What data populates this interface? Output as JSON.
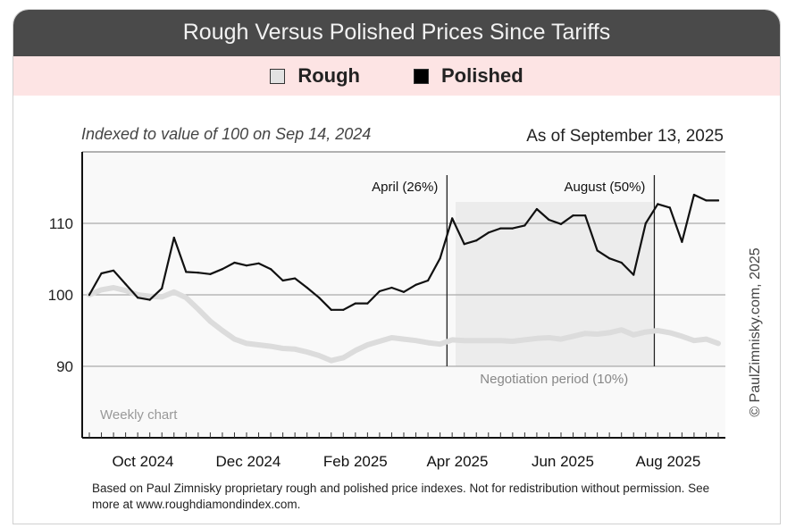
{
  "title": "Rough Versus Polished Prices Since Tariffs",
  "subtitle_left": "Indexed to value of 100 on Sep 14, 2024",
  "subtitle_right": "As of September 13, 2025",
  "watermark": "© PaulZimnisky.com, 2025",
  "footnote": "Based on Paul Zimnisky proprietary rough and polished price indexes. Not for redistribution without permission. See more at www.roughdiamondindex.com.",
  "chart_data": {
    "type": "line",
    "title": "Rough Versus Polished Prices Since Tariffs",
    "xlabel": "",
    "ylabel": "",
    "ylim": [
      80,
      120
    ],
    "yticks": [
      90,
      100,
      110
    ],
    "grid": "horizontal",
    "legend_placement": "top",
    "x_tick_labels": [
      "Oct 2024",
      "Dec 2024",
      "Feb 2025",
      "Apr 2025",
      "Jun 2025",
      "Aug 2025"
    ],
    "x_tick_months": [
      "2024-10",
      "2024-12",
      "2025-02",
      "2025-04",
      "2025-06",
      "2025-08"
    ],
    "x": [
      "2024-09-14",
      "2024-09-21",
      "2024-09-28",
      "2024-10-05",
      "2024-10-12",
      "2024-10-19",
      "2024-10-26",
      "2024-11-02",
      "2024-11-09",
      "2024-11-16",
      "2024-11-23",
      "2024-11-30",
      "2024-12-07",
      "2024-12-14",
      "2024-12-21",
      "2024-12-28",
      "2025-01-04",
      "2025-01-11",
      "2025-01-18",
      "2025-01-25",
      "2025-02-01",
      "2025-02-08",
      "2025-02-15",
      "2025-02-22",
      "2025-03-01",
      "2025-03-08",
      "2025-03-15",
      "2025-03-22",
      "2025-03-29",
      "2025-04-05",
      "2025-04-12",
      "2025-04-19",
      "2025-04-26",
      "2025-05-03",
      "2025-05-10",
      "2025-05-17",
      "2025-05-24",
      "2025-05-31",
      "2025-06-07",
      "2025-06-14",
      "2025-06-21",
      "2025-06-28",
      "2025-07-05",
      "2025-07-12",
      "2025-07-19",
      "2025-07-26",
      "2025-08-02",
      "2025-08-09",
      "2025-08-16",
      "2025-08-23",
      "2025-08-30",
      "2025-09-06",
      "2025-09-13"
    ],
    "series": [
      {
        "name": "Rough",
        "color": "#dcdcdc",
        "values": [
          100,
          100.7,
          101,
          100.6,
          100,
          99.8,
          99.7,
          100.4,
          99.6,
          98,
          96.3,
          95,
          93.8,
          93.2,
          93,
          92.8,
          92.5,
          92.4,
          92,
          91.5,
          90.8,
          91.2,
          92.2,
          93,
          93.5,
          94,
          93.8,
          93.6,
          93.3,
          93.1,
          93.7,
          93.6,
          93.6,
          93.6,
          93.6,
          93.5,
          93.7,
          93.9,
          94,
          93.8,
          94.2,
          94.6,
          94.5,
          94.7,
          95.1,
          94.4,
          94.8,
          95,
          94.7,
          94.2,
          93.6,
          93.8,
          93.2
        ]
      },
      {
        "name": "Polished",
        "color": "#111111",
        "values": [
          100,
          103,
          103.4,
          101.5,
          99.6,
          99.3,
          100.9,
          108,
          103.2,
          103.1,
          102.9,
          103.6,
          104.5,
          104.1,
          104.4,
          103.6,
          102,
          102.3,
          101,
          99.6,
          97.9,
          97.9,
          98.8,
          98.8,
          100.5,
          101,
          100.4,
          101.4,
          102,
          105.1,
          110.7,
          107.1,
          107.6,
          108.7,
          109.3,
          109.3,
          109.7,
          112,
          110.5,
          109.9,
          111.1,
          111.1,
          106.2,
          105.1,
          104.5,
          102.8,
          110,
          112.7,
          112.2,
          107.4,
          114,
          113.2,
          113.2
        ]
      }
    ],
    "annotations": [
      {
        "type": "vline",
        "date": "2025-04-09",
        "label": "April (26%)"
      },
      {
        "type": "vline",
        "date": "2025-08-07",
        "label": "August (50%)"
      },
      {
        "type": "band",
        "start": "2025-04-14",
        "end": "2025-08-06",
        "ymin": 90,
        "ymax": 113,
        "label": "Negotiation period (10%)"
      },
      {
        "type": "text",
        "label": "Weekly chart"
      }
    ]
  }
}
